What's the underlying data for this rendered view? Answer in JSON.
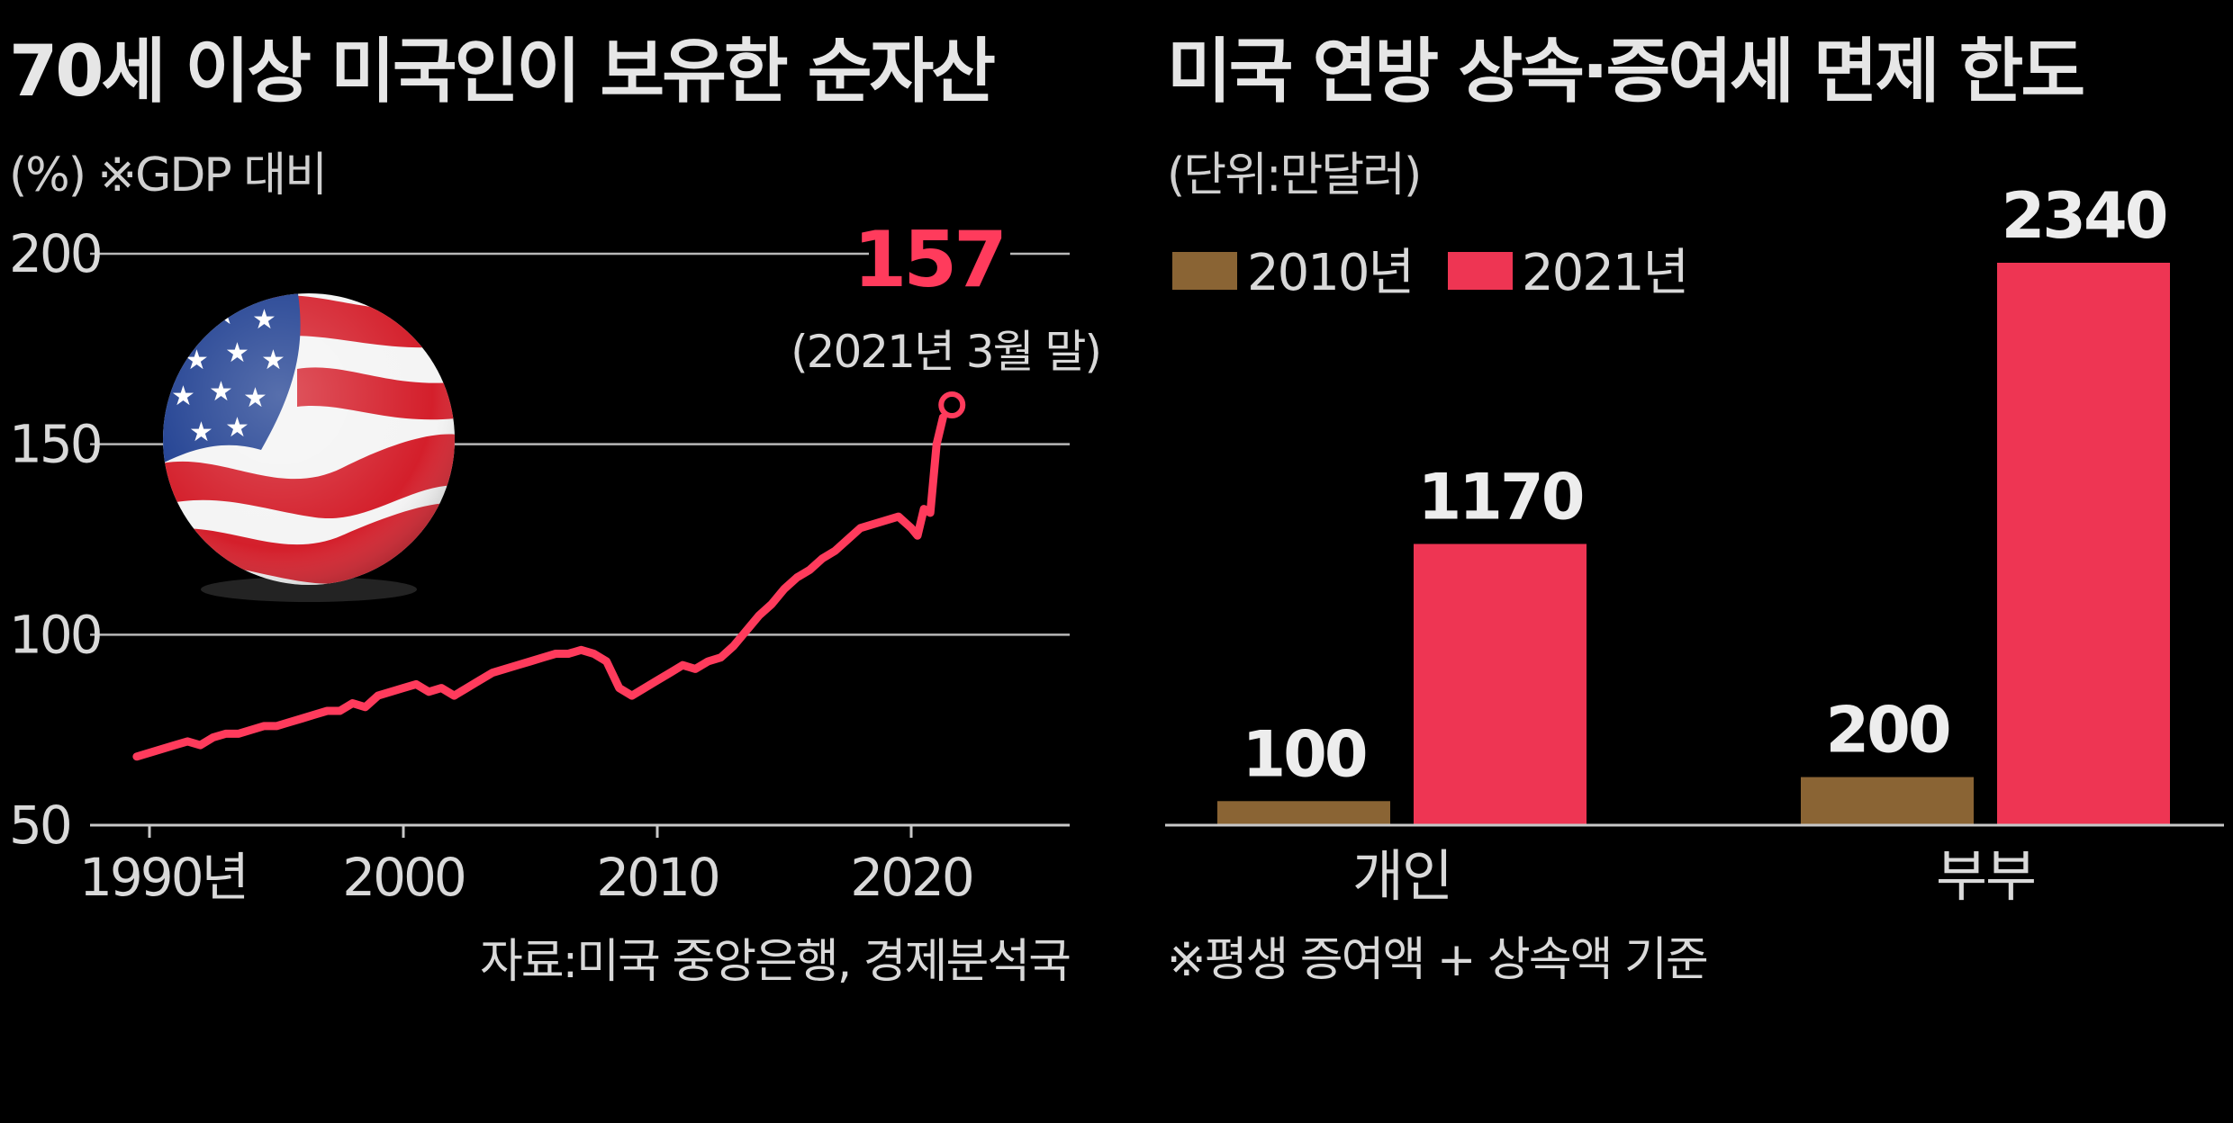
{
  "colors": {
    "line": "#ff3b5c",
    "bar_2010": "#8a6434",
    "bar_2021": "#ee3553",
    "grid": "#b8b8b8"
  },
  "left_chart": {
    "title": "70세 이상 미국인이 보유한 순자산",
    "unit_note": "(%) ※GDP 대비",
    "peak_value": "157",
    "peak_note": "(2021년 3월 말)",
    "source": "자료:미국 중앙은행, 경제분석국",
    "image_icon": "us-flag-image",
    "y_ticks": [
      "200",
      "150",
      "100",
      "50"
    ],
    "x_ticks": [
      "1990년",
      "2000",
      "2010",
      "2020"
    ]
  },
  "right_chart": {
    "title": "미국 연방 상속·증여세 면제 한도",
    "unit_note": "(단위:만달러)",
    "legend": [
      "2010년",
      "2021년"
    ],
    "footnote": "※평생 증여액 + 상속액 기준"
  },
  "chart_data": [
    {
      "type": "line",
      "title": "70세 이상 미국인이 보유한 순자산",
      "ylabel": "(%) ※GDP 대비",
      "xlabel": "",
      "ylim": [
        50,
        200
      ],
      "xlim": [
        1989,
        2025
      ],
      "yticks": [
        50,
        100,
        150,
        200
      ],
      "xticks": [
        1990,
        2000,
        2010,
        2020
      ],
      "grid": true,
      "annotation": {
        "x": 2021.25,
        "y": 157,
        "text": "157",
        "note": "(2021년 3월 말)"
      },
      "x": [
        1989.5,
        1990,
        1990.5,
        1991,
        1991.5,
        1992,
        1992.5,
        1993,
        1993.5,
        1994,
        1994.5,
        1995,
        1995.5,
        1996,
        1996.5,
        1997,
        1997.5,
        1998,
        1998.5,
        1999,
        1999.5,
        2000,
        2000.5,
        2001,
        2001.5,
        2002,
        2002.5,
        2003,
        2003.5,
        2004,
        2004.5,
        2005,
        2005.5,
        2006,
        2006.5,
        2007,
        2007.5,
        2008,
        2008.5,
        2009,
        2009.5,
        2010,
        2010.5,
        2011,
        2011.5,
        2012,
        2012.5,
        2013,
        2013.5,
        2014,
        2014.5,
        2015,
        2015.5,
        2016,
        2016.5,
        2017,
        2017.5,
        2018,
        2018.5,
        2019,
        2019.5,
        2020,
        2020.25,
        2020.5,
        2020.75,
        2021,
        2021.25
      ],
      "y": [
        68,
        69,
        70,
        71,
        72,
        71,
        73,
        74,
        74,
        75,
        76,
        76,
        77,
        78,
        79,
        80,
        80,
        82,
        81,
        84,
        85,
        86,
        87,
        85,
        86,
        84,
        86,
        88,
        90,
        91,
        92,
        93,
        94,
        95,
        95,
        96,
        95,
        93,
        86,
        84,
        86,
        88,
        90,
        92,
        91,
        93,
        94,
        97,
        101,
        105,
        108,
        112,
        115,
        117,
        120,
        122,
        125,
        128,
        129,
        130,
        131,
        128,
        126,
        133,
        132,
        150,
        157
      ]
    },
    {
      "type": "bar",
      "title": "미국 연방 상속·증여세 면제 한도",
      "ylabel": "(단위:만달러)",
      "categories": [
        "개인",
        "부부"
      ],
      "series": [
        {
          "name": "2010년",
          "values": [
            100,
            200
          ]
        },
        {
          "name": "2021년",
          "values": [
            1170,
            2340
          ]
        }
      ],
      "ylim": [
        0,
        2340
      ],
      "legend_position": "top-left",
      "note": "※평생 증여액 + 상속액 기준"
    }
  ]
}
